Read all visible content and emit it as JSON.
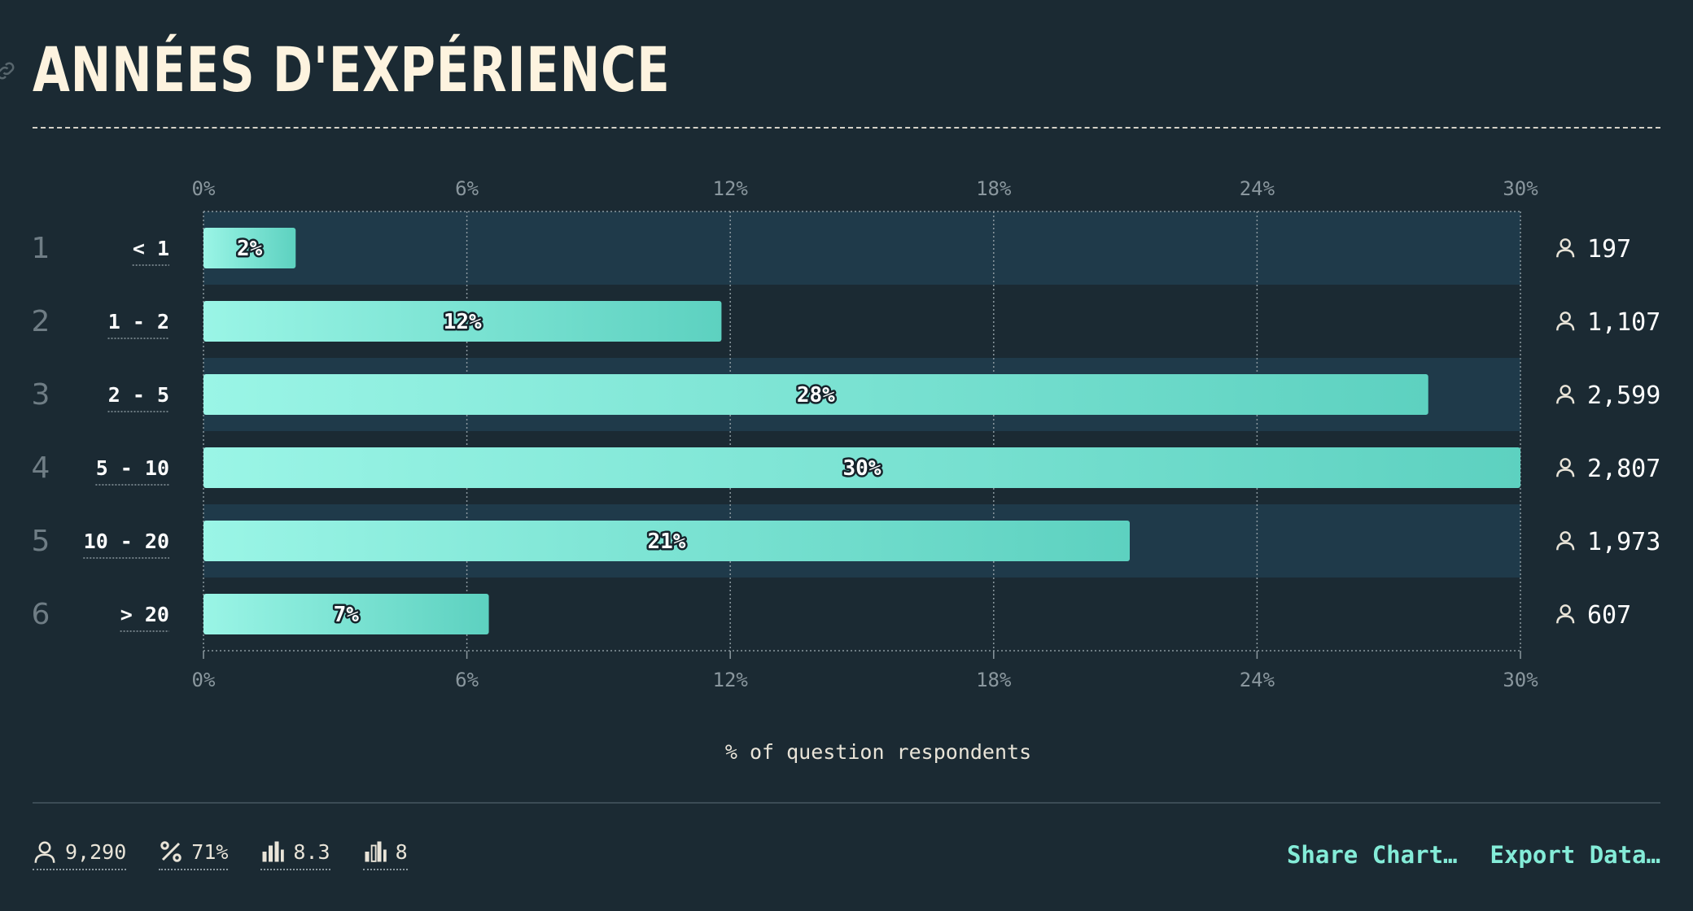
{
  "title": "ANNÉES D'EXPÉRIENCE",
  "chart_data": {
    "type": "bar",
    "orientation": "horizontal",
    "categories": [
      "< 1",
      "1 - 2",
      "2 - 5",
      "5 - 10",
      "10 - 20",
      "> 20"
    ],
    "ranks": [
      "1",
      "2",
      "3",
      "4",
      "5",
      "6"
    ],
    "values": [
      2,
      12,
      28,
      30,
      21,
      7
    ],
    "value_labels": [
      "2%",
      "12%",
      "28%",
      "30%",
      "21%",
      "7%"
    ],
    "bar_values": [
      2.1,
      11.8,
      27.9,
      30,
      21.1,
      6.5
    ],
    "counts": [
      "197",
      "1,107",
      "2,599",
      "2,807",
      "1,973",
      "607"
    ],
    "xlim": [
      0,
      30
    ],
    "ticks": [
      "0%",
      "6%",
      "12%",
      "18%",
      "24%",
      "30%"
    ],
    "tick_values": [
      0,
      6,
      12,
      18,
      24,
      30
    ],
    "xlabel": "% of question respondents",
    "ylabel": "",
    "grid": true,
    "colors": {
      "bar_start": "#9af5e6",
      "bar_end": "#5dd1c0",
      "band": "#1f3a4a",
      "background": "#1b2a33"
    }
  },
  "footer": {
    "stats": [
      {
        "icon": "person-icon",
        "value": "9,290"
      },
      {
        "icon": "percent-icon",
        "value": "71%"
      },
      {
        "icon": "bar-chart-icon",
        "value": "8.3"
      },
      {
        "icon": "bar-chart-outline-icon",
        "value": "8"
      }
    ],
    "share_label": "Share Chart…",
    "export_label": "Export Data…"
  }
}
